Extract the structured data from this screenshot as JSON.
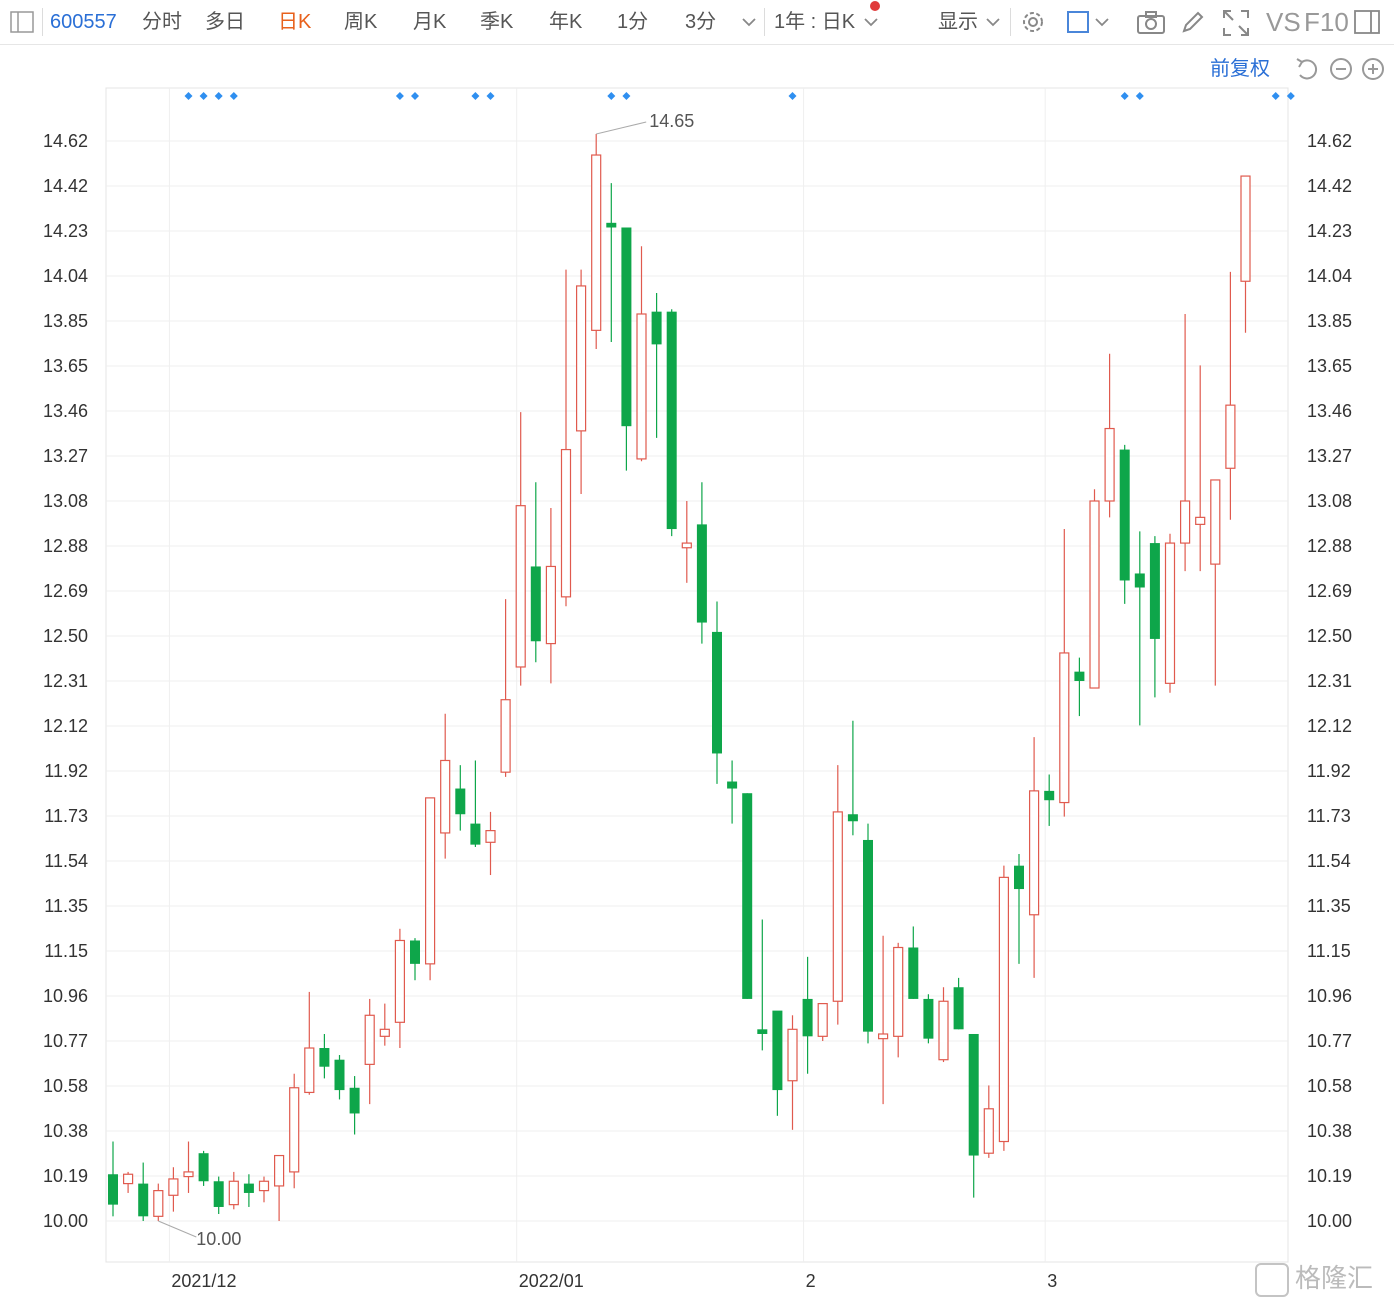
{
  "toolbar": {
    "stock_code": "600557",
    "tabs": [
      "分时",
      "多日",
      "日K",
      "周K",
      "月K",
      "季K",
      "年K",
      "1分",
      "3分"
    ],
    "active_tab": "日K",
    "period_selector": "1年 : 日K",
    "display_label": "显示",
    "vs_label": "VS",
    "f10_label": "F10"
  },
  "restore_label": "前复权",
  "watermark": "格隆汇",
  "colors": {
    "up": "#e05a4e",
    "down": "#0ea64a",
    "grid": "#efefef",
    "accent": "#2a6fd6",
    "active": "#e8611c"
  },
  "chart_data": {
    "type": "candlestick",
    "y_ticks": [
      "14.62",
      "14.42",
      "14.23",
      "14.04",
      "13.85",
      "13.65",
      "13.46",
      "13.27",
      "13.08",
      "12.88",
      "12.69",
      "12.50",
      "12.31",
      "12.12",
      "11.92",
      "11.73",
      "11.54",
      "11.35",
      "11.15",
      "10.96",
      "10.77",
      "10.58",
      "10.38",
      "10.19",
      "10.00"
    ],
    "x_ticks": [
      {
        "label": "2021/12",
        "index": 4
      },
      {
        "label": "2022/01",
        "index": 27
      },
      {
        "label": "2",
        "index": 46
      },
      {
        "label": "3",
        "index": 62
      }
    ],
    "max_marker": {
      "label": "14.65",
      "index": 32,
      "value": 14.65
    },
    "min_marker": {
      "label": "10.00",
      "index": 3,
      "value": 10.0
    },
    "event_marker_indices": [
      5,
      6,
      7,
      8,
      19,
      20,
      24,
      25,
      33,
      34,
      45,
      67,
      68,
      77,
      78
    ],
    "candles": [
      [
        10.2,
        10.07,
        10.02,
        10.34
      ],
      [
        10.16,
        10.2,
        10.12,
        10.21
      ],
      [
        10.16,
        10.02,
        10.0,
        10.25
      ],
      [
        10.02,
        10.13,
        10.0,
        10.16
      ],
      [
        10.11,
        10.18,
        10.04,
        10.23
      ],
      [
        10.19,
        10.21,
        10.12,
        10.34
      ],
      [
        10.29,
        10.17,
        10.15,
        10.3
      ],
      [
        10.17,
        10.06,
        10.03,
        10.19
      ],
      [
        10.07,
        10.17,
        10.05,
        10.21
      ],
      [
        10.16,
        10.12,
        10.06,
        10.2
      ],
      [
        10.13,
        10.17,
        10.08,
        10.19
      ],
      [
        10.15,
        10.28,
        10.0,
        10.28
      ],
      [
        10.21,
        10.57,
        10.14,
        10.63
      ],
      [
        10.55,
        10.74,
        10.54,
        10.98
      ],
      [
        10.74,
        10.66,
        10.61,
        10.8
      ],
      [
        10.69,
        10.56,
        10.52,
        10.71
      ],
      [
        10.57,
        10.46,
        10.37,
        10.62
      ],
      [
        10.67,
        10.88,
        10.5,
        10.95
      ],
      [
        10.79,
        10.82,
        10.75,
        10.93
      ],
      [
        10.85,
        11.2,
        10.74,
        11.25
      ],
      [
        11.2,
        11.1,
        11.03,
        11.21
      ],
      [
        11.1,
        11.81,
        11.03,
        11.81
      ],
      [
        11.66,
        11.97,
        11.55,
        12.17
      ],
      [
        11.85,
        11.74,
        11.67,
        11.95
      ],
      [
        11.7,
        11.61,
        11.6,
        11.97
      ],
      [
        11.62,
        11.67,
        11.48,
        11.75
      ],
      [
        11.92,
        12.23,
        11.9,
        12.66
      ],
      [
        12.37,
        13.06,
        12.29,
        13.46
      ],
      [
        12.8,
        12.48,
        12.39,
        13.16
      ],
      [
        12.47,
        12.8,
        12.3,
        13.05
      ],
      [
        12.67,
        13.3,
        12.63,
        14.07
      ],
      [
        13.38,
        14.0,
        13.11,
        14.07
      ],
      [
        13.81,
        14.56,
        13.73,
        14.65
      ],
      [
        14.27,
        14.25,
        13.76,
        14.44
      ],
      [
        14.25,
        13.4,
        13.21,
        14.25
      ],
      [
        13.26,
        13.88,
        13.25,
        14.17
      ],
      [
        13.89,
        13.75,
        13.35,
        13.97
      ],
      [
        13.89,
        12.96,
        12.93,
        13.9
      ],
      [
        12.88,
        12.9,
        12.73,
        13.08
      ],
      [
        12.98,
        12.56,
        12.47,
        13.16
      ],
      [
        12.52,
        12.0,
        11.87,
        12.65
      ],
      [
        11.88,
        11.85,
        11.7,
        11.97
      ],
      [
        11.83,
        10.95,
        10.95,
        11.83
      ],
      [
        10.82,
        10.8,
        10.73,
        11.29
      ],
      [
        10.9,
        10.56,
        10.45,
        10.89
      ],
      [
        10.6,
        10.82,
        10.39,
        10.88
      ],
      [
        10.95,
        10.79,
        10.63,
        11.13
      ],
      [
        10.79,
        10.93,
        10.77,
        10.9
      ],
      [
        10.94,
        11.75,
        10.84,
        11.95
      ],
      [
        11.74,
        11.71,
        11.65,
        12.14
      ],
      [
        11.63,
        10.81,
        10.76,
        11.7
      ],
      [
        10.78,
        10.8,
        10.5,
        11.22
      ],
      [
        10.79,
        11.17,
        10.7,
        11.19
      ],
      [
        11.17,
        10.95,
        10.95,
        11.26
      ],
      [
        10.95,
        10.78,
        10.76,
        10.97
      ],
      [
        10.69,
        10.94,
        10.68,
        11.0
      ],
      [
        11.0,
        10.82,
        10.82,
        11.04
      ],
      [
        10.8,
        10.28,
        10.1,
        10.8
      ],
      [
        10.29,
        10.48,
        10.27,
        10.58
      ],
      [
        10.34,
        11.47,
        10.3,
        11.52
      ],
      [
        11.52,
        11.42,
        11.1,
        11.57
      ],
      [
        11.31,
        11.84,
        11.04,
        12.07
      ],
      [
        11.84,
        11.8,
        11.69,
        11.91
      ],
      [
        11.79,
        12.43,
        11.73,
        12.96
      ],
      [
        12.35,
        12.31,
        12.16,
        12.41
      ],
      [
        12.28,
        13.08,
        12.28,
        13.13
      ],
      [
        13.08,
        13.39,
        13.01,
        13.71
      ],
      [
        13.3,
        12.74,
        12.64,
        13.32
      ],
      [
        12.77,
        12.71,
        12.12,
        12.95
      ],
      [
        12.9,
        12.49,
        12.24,
        12.93
      ],
      [
        12.3,
        12.9,
        12.26,
        12.94
      ],
      [
        12.9,
        13.08,
        12.78,
        13.88
      ],
      [
        12.98,
        13.01,
        12.78,
        13.66
      ],
      [
        12.81,
        13.17,
        12.29,
        13.17
      ],
      [
        13.22,
        13.49,
        13.0,
        14.06
      ],
      [
        14.02,
        14.47,
        13.8,
        14.47
      ]
    ]
  }
}
